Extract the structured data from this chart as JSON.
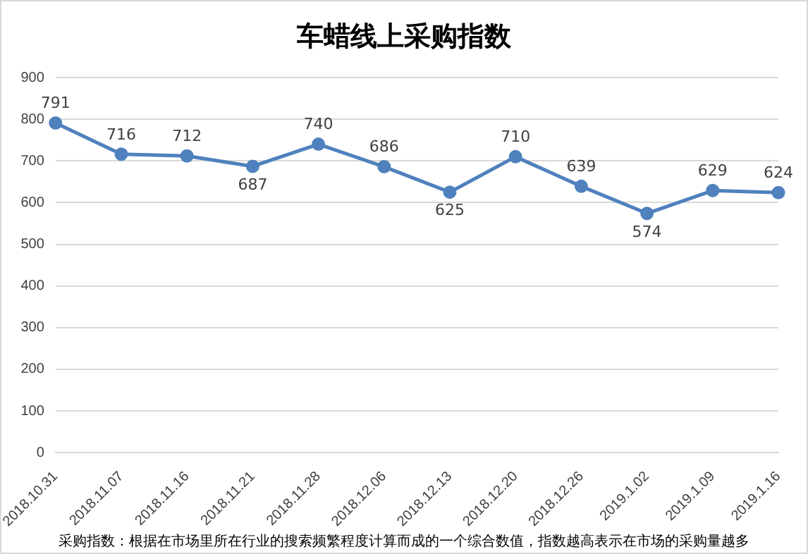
{
  "chart_data": {
    "type": "line",
    "title": "车蜡线上采购指数",
    "categories": [
      "2018.10.31",
      "2018.11.07",
      "2018.11.16",
      "2018.11.21",
      "2018.11.28",
      "2018.12.06",
      "2018.12.13",
      "2018.12.20",
      "2018.12.26",
      "2019.1.02",
      "2019.1.09",
      "2019.1.16"
    ],
    "series": [
      {
        "color": "#4f81bd",
        "values": [
          791,
          716,
          712,
          687,
          740,
          686,
          625,
          710,
          639,
          574,
          629,
          624
        ]
      }
    ],
    "ylim": [
      0,
      900
    ],
    "yticks": [
      0,
      100,
      200,
      300,
      400,
      500,
      600,
      700,
      800,
      900
    ],
    "grid": "y",
    "legend": false,
    "marker": "circle",
    "line_style": "solid",
    "data_labels": true,
    "annotations": [
      "采购指数：根据在市场里所在行业的搜索频繁程度计算而成的一个综合数值，指数越高表示在市场的采购量越多"
    ]
  }
}
